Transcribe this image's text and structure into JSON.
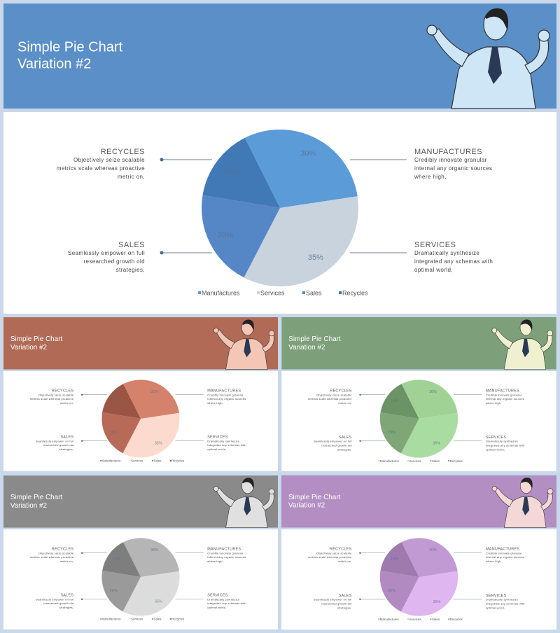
{
  "chart_data": [
    {
      "type": "pie",
      "title": [
        "Simple Pie Chart",
        "Variation #2"
      ],
      "categories": [
        "Manufactures",
        "Services",
        "Sales",
        "Recycles"
      ],
      "values": [
        30,
        35,
        20,
        15
      ],
      "value_labels": [
        "30%",
        "35%",
        "20%",
        "15%"
      ],
      "colors": [
        "#5b9bd8",
        "#c8d3dd",
        "#5587c6",
        "#4079b6"
      ],
      "header_color": "#5a8fc8",
      "figure_color": "#cfe6f7",
      "callouts": [
        {
          "heading": "RECYCLES",
          "lines": [
            "Objectively seize scalable",
            "metrics scale whereas proactive",
            "metric on,"
          ]
        },
        {
          "heading": "MANUFACTURES",
          "lines": [
            "Credibly innovate granular",
            "internal any organic sources",
            "where high,"
          ]
        },
        {
          "heading": "SALES",
          "lines": [
            "Seamlessly empower on full",
            "researched growth old",
            "strategies,"
          ]
        },
        {
          "heading": "SERVICES",
          "lines": [
            "Dramatically synthesize",
            "integrated  any schemas with",
            "optimal world,"
          ]
        }
      ]
    },
    {
      "type": "pie",
      "title": [
        "Simple Pie Chart",
        "Variation #2"
      ],
      "categories": [
        "Manufactures",
        "Services",
        "Sales",
        "Recycles"
      ],
      "values": [
        30,
        35,
        20,
        15
      ],
      "value_labels": [
        "30%",
        "35%",
        "20%",
        "15%"
      ],
      "colors": [
        "#d4826c",
        "#fcdacd",
        "#b76a57",
        "#9a5545"
      ],
      "header_color": "#b06a55",
      "figure_color": "#f3c6b6",
      "callouts": [
        {
          "heading": "RECYCLES",
          "lines": [
            "Objectively seize scalable",
            "metrics scale whereas proactive",
            "metric on,"
          ]
        },
        {
          "heading": "MANUFACTURES",
          "lines": [
            "Credibly innovate granular",
            "internal any organic sources",
            "where high,"
          ]
        },
        {
          "heading": "SALES",
          "lines": [
            "Seamlessly empower on full",
            "researched growth old",
            "strategies,"
          ]
        },
        {
          "heading": "SERVICES",
          "lines": [
            "Dramatically synthesize",
            "integrated  any schemas with",
            "optimal world,"
          ]
        }
      ]
    },
    {
      "type": "pie",
      "title": [
        "Simple Pie Chart",
        "Variation #2"
      ],
      "categories": [
        "Manufactures",
        "Services",
        "Sales",
        "Recycles"
      ],
      "values": [
        30,
        35,
        20,
        15
      ],
      "value_labels": [
        "30%",
        "35%",
        "20%",
        "15%"
      ],
      "colors": [
        "#a0d296",
        "#a9dca1",
        "#7ea677",
        "#6b9365"
      ],
      "header_color": "#7d9f79",
      "figure_color": "#eef0d0",
      "callouts": [
        {
          "heading": "RECYCLES",
          "lines": [
            "Objectively seize scalable",
            "metrics scale whereas proactive",
            "metric on,"
          ]
        },
        {
          "heading": "MANUFACTURES",
          "lines": [
            "Credibly innovate granular",
            "internal any organic sources",
            "where high,"
          ]
        },
        {
          "heading": "SALES",
          "lines": [
            "Seamlessly empower on full",
            "researched growth old",
            "strategies,"
          ]
        },
        {
          "heading": "SERVICES",
          "lines": [
            "Dramatically synthesize",
            "integrated  any schemas with",
            "optimal world,"
          ]
        }
      ]
    },
    {
      "type": "pie",
      "title": [
        "Simple Pie Chart",
        "Variation #2"
      ],
      "categories": [
        "Manufactures",
        "Services",
        "Sales",
        "Recycles"
      ],
      "values": [
        30,
        35,
        20,
        15
      ],
      "value_labels": [
        "30%",
        "35%",
        "20%",
        "15%"
      ],
      "colors": [
        "#b5b5b5",
        "#dcdcdc",
        "#9a9a9a",
        "#7e7e7e"
      ],
      "header_color": "#8a8a8a",
      "figure_color": "#e0e0e0",
      "callouts": [
        {
          "heading": "RECYCLES",
          "lines": [
            "Objectively seize scalable",
            "metrics scale whereas proactive",
            "metric on,"
          ]
        },
        {
          "heading": "MANUFACTURES",
          "lines": [
            "Credibly innovate granular",
            "internal any organic sources",
            "where high,"
          ]
        },
        {
          "heading": "SALES",
          "lines": [
            "Seamlessly empower on full",
            "researched growth old",
            "strategies,"
          ]
        },
        {
          "heading": "SERVICES",
          "lines": [
            "Dramatically synthesize",
            "integrated  any schemas with",
            "optimal world,"
          ]
        }
      ]
    },
    {
      "type": "pie",
      "title": [
        "Simple Pie Chart",
        "Variation #2"
      ],
      "categories": [
        "Manufactures",
        "Services",
        "Sales",
        "Recycles"
      ],
      "values": [
        30,
        35,
        20,
        15
      ],
      "value_labels": [
        "30%",
        "35%",
        "20%",
        "15%"
      ],
      "colors": [
        "#c29ad3",
        "#dfb6f0",
        "#b08ac0",
        "#9e7aae"
      ],
      "header_color": "#b28ec2",
      "figure_color": "#f4d7d7",
      "callouts": [
        {
          "heading": "RECYCLES",
          "lines": [
            "Objectively seize scalable",
            "metrics scale whereas proactive",
            "metric on,"
          ]
        },
        {
          "heading": "MANUFACTURES",
          "lines": [
            "Credibly innovate granular",
            "internal any organic sources",
            "where high,"
          ]
        },
        {
          "heading": "SALES",
          "lines": [
            "Seamlessly empower on full",
            "researched growth old",
            "strategies,"
          ]
        },
        {
          "heading": "SERVICES",
          "lines": [
            "Dramatically synthesize",
            "integrated  any schemas with",
            "optimal world,"
          ]
        }
      ]
    }
  ]
}
